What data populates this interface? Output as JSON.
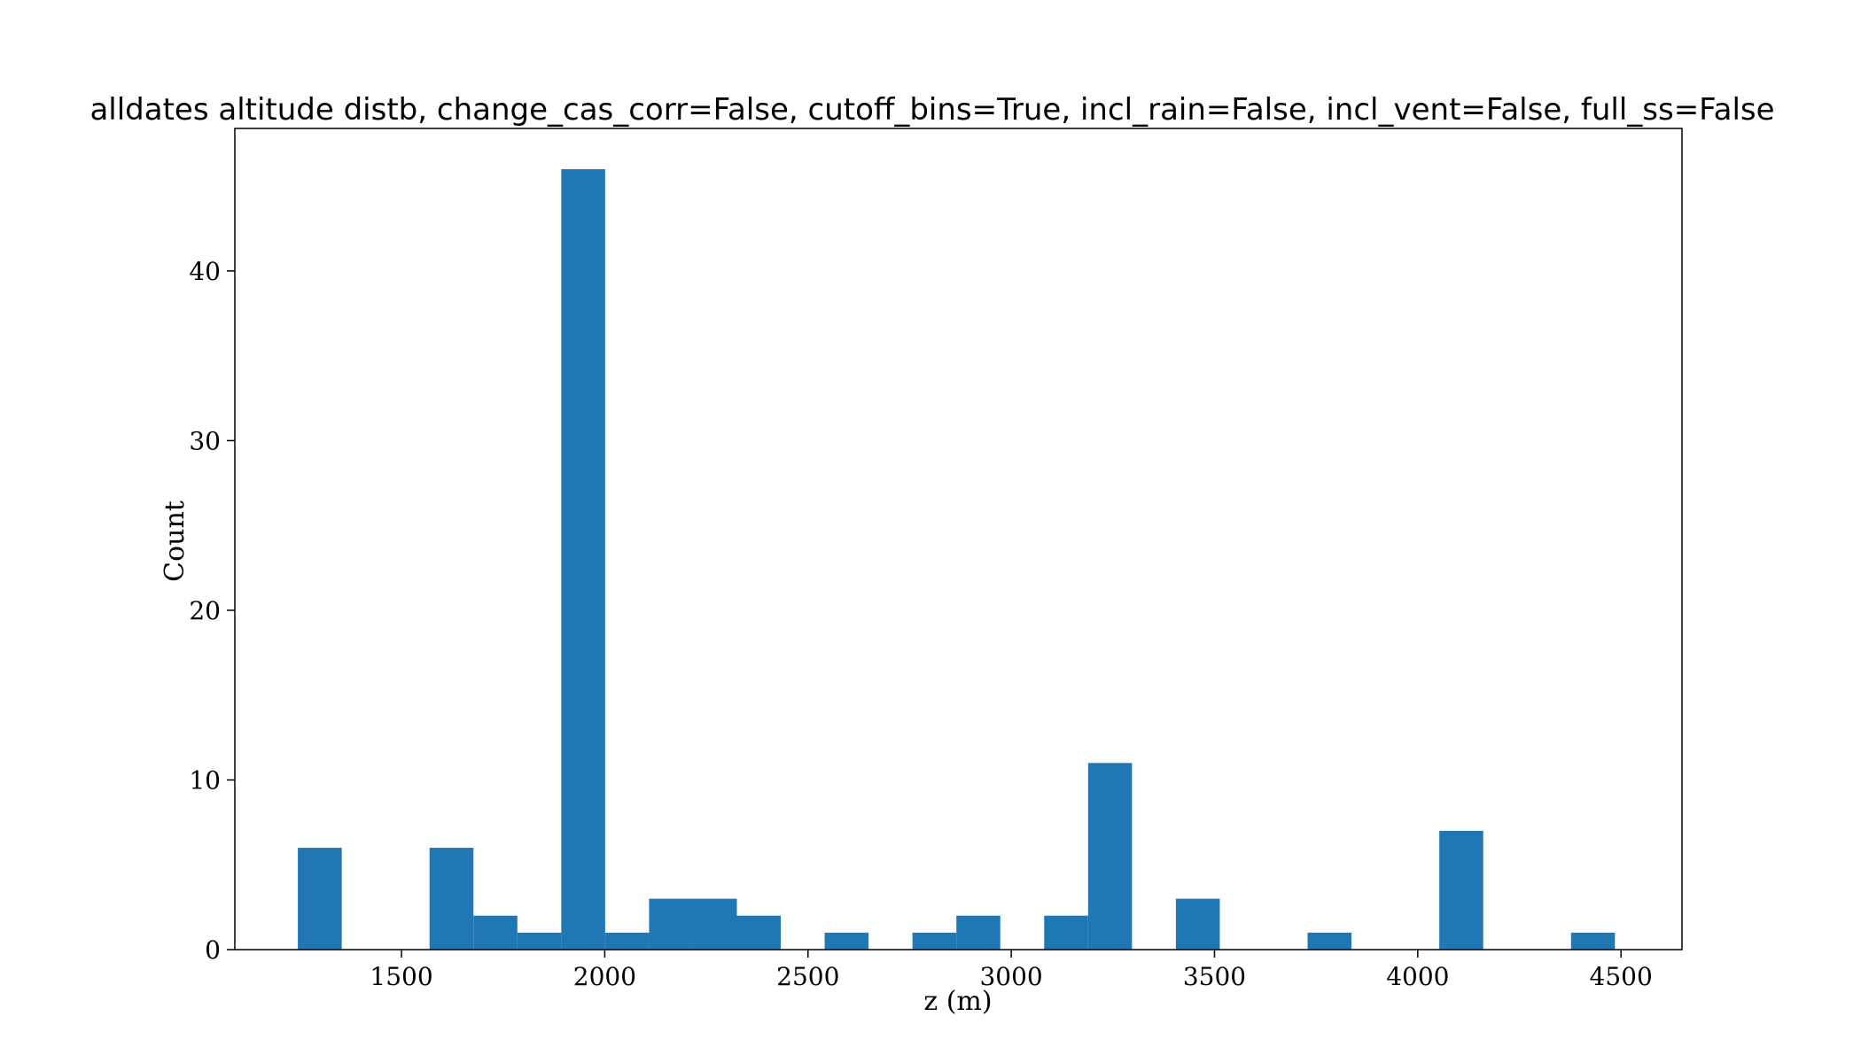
{
  "chart_data": {
    "type": "bar",
    "title": "alldates altitude distb, change_cas_corr=False, cutoff_bins=True, incl_rain=False, incl_vent=False, full_ss=False",
    "xlabel": "z (m)",
    "ylabel": "Count",
    "xlim": [
      1090,
      4650
    ],
    "ylim": [
      0,
      48.4
    ],
    "x_ticks": [
      1500,
      2000,
      2500,
      3000,
      3500,
      4000,
      4500
    ],
    "y_ticks": [
      0,
      10,
      20,
      30,
      40
    ],
    "grid": false,
    "bar_color": "#1f77b4",
    "bin_edges": [
      1245,
      1353,
      1461,
      1569,
      1677,
      1785,
      1893,
      2001,
      2109,
      2217,
      2325,
      2433,
      2541,
      2649,
      2757,
      2865,
      2973,
      3081,
      3189,
      3297,
      3405,
      3513,
      3621,
      3729,
      3837,
      3945,
      4053,
      4161,
      4269,
      4377,
      4485
    ],
    "values": [
      6,
      0,
      0,
      6,
      2,
      1,
      46,
      1,
      3,
      3,
      2,
      0,
      1,
      0,
      1,
      2,
      0,
      2,
      11,
      0,
      3,
      0,
      0,
      1,
      0,
      0,
      7,
      0,
      0,
      1
    ]
  }
}
